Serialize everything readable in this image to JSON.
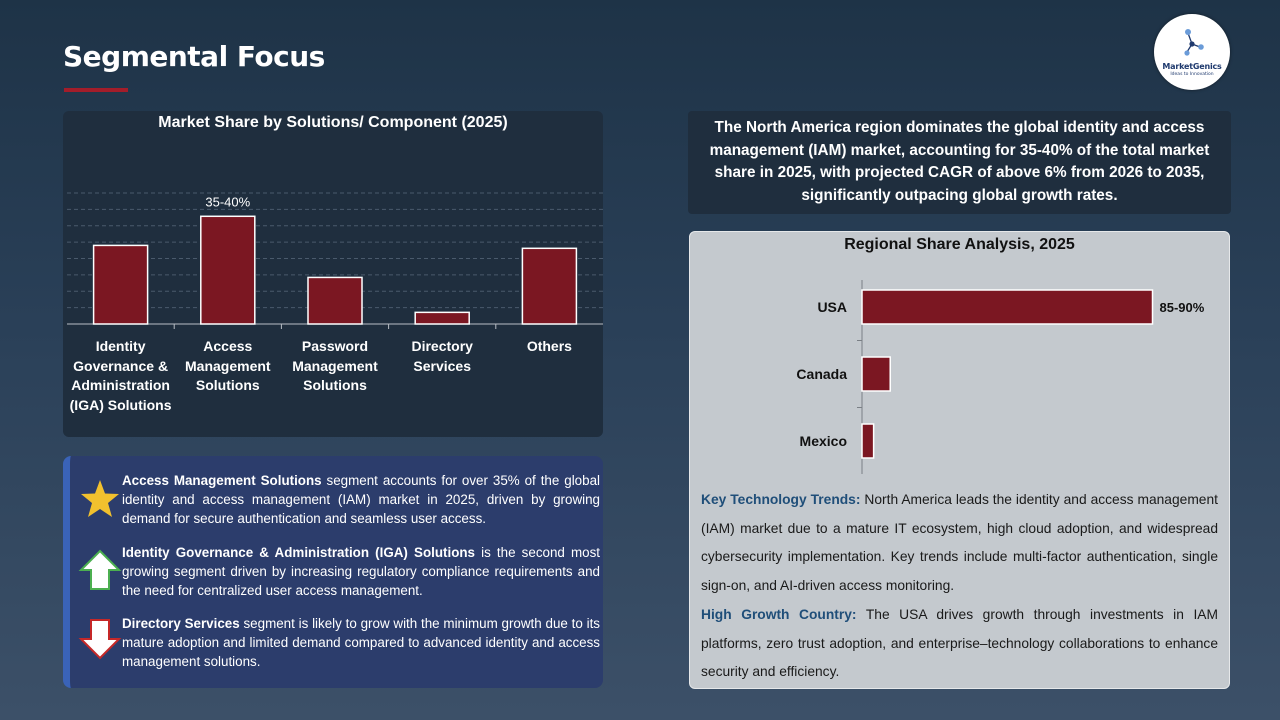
{
  "page": {
    "title": "Segmental Focus",
    "logo": {
      "name": "MarketGenics",
      "tagline": "Ideas to Innovation"
    }
  },
  "colors": {
    "bar": "#7b1722",
    "accent": "#a31d2a",
    "trend_label": "#1f4e79"
  },
  "chart_data": [
    {
      "type": "bar",
      "title": "Market Share by Solutions/ Component (2025)",
      "categories": [
        "Identity Governance & Administration (IGA) Solutions",
        "Access Management Solutions",
        "Password Management Solutions",
        "Directory Services",
        "Others"
      ],
      "values": [
        27,
        37,
        16,
        4,
        26
      ],
      "data_labels": [
        "",
        "35-40%",
        "",
        "",
        ""
      ],
      "ylim": [
        0,
        45
      ],
      "grid": true
    },
    {
      "type": "bar",
      "orientation": "horizontal",
      "title": "Regional Share Analysis, 2025",
      "categories": [
        "USA",
        "Canada",
        "Mexico"
      ],
      "values": [
        87.5,
        8.5,
        3.5
      ],
      "data_labels": [
        "85-90%",
        "",
        ""
      ],
      "xlim": [
        0,
        100
      ]
    }
  ],
  "insights": [
    {
      "icon": "star-icon",
      "bold": "Access Management Solutions",
      "text": " segment accounts for over 35% of the global identity and access management (IAM) market in 2025, driven by growing demand for secure authentication and seamless user access."
    },
    {
      "icon": "arrow-up-icon",
      "bold": "Identity Governance & Administration (IGA) Solutions",
      "text": " is the second most growing segment driven by increasing regulatory compliance requirements and the need for centralized user access management."
    },
    {
      "icon": "arrow-down-icon",
      "bold": "Directory Services",
      "text": " segment is likely to grow with the minimum growth due to its mature adoption and limited demand compared to advanced identity and access management solutions."
    }
  ],
  "summary": "The North America region dominates the global identity and access management (IAM) market, accounting for 35-40% of the total market share in 2025, with projected CAGR of above 6% from 2026 to 2035, significantly outpacing global growth rates.",
  "trends": [
    {
      "label": "Key Technology Trends:",
      "text": " North America leads the identity and access management (IAM) market due to a mature IT ecosystem, high cloud adoption, and widespread cybersecurity implementation. Key trends include multi-factor authentication, single sign-on, and AI-driven access monitoring."
    },
    {
      "label": "High Growth Country:",
      "text": " The USA drives growth through investments in IAM platforms, zero trust adoption, and enterprise–technology collaborations to enhance security and efficiency."
    }
  ]
}
